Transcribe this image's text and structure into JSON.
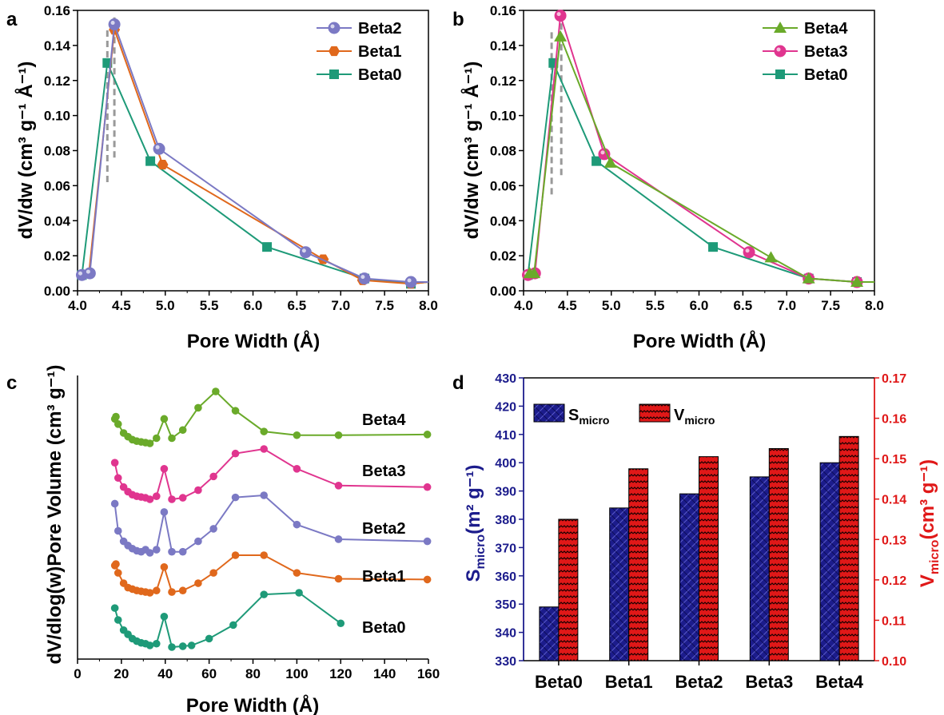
{
  "colors": {
    "beta0": "#1e9a78",
    "beta1": "#e0681c",
    "beta2": "#7b79c4",
    "beta3": "#e0358f",
    "beta4": "#6aaa2a",
    "dashed": "#999999",
    "bar_s": "#1c1c8c",
    "bar_v": "#e01818",
    "axis_right": "#e01818",
    "axis_left_label": "#1c1c8c"
  },
  "panel_labels": {
    "a": "a",
    "b": "b",
    "c": "c",
    "d": "d"
  },
  "axis_labels": {
    "a_x": "Pore Width (Å)",
    "a_y": "dV/dw (cm³ g⁻¹ Å⁻¹)",
    "b_x": "Pore Width (Å)",
    "b_y": "dV/dw (cm³ g⁻¹ Å⁻¹)",
    "c_x": "Pore Width (Å)",
    "c_y": "dV/dlog(w)Pore Volume (cm³ g⁻¹)",
    "d_y_left": "S",
    "d_y_left_sub": "micro",
    "d_y_left_unit": "(m² g⁻¹)",
    "d_y_right": "V",
    "d_y_right_sub": "micro",
    "d_y_right_unit": "(cm³ g⁻¹)"
  },
  "legend_d": {
    "s_label": "S",
    "s_sub": "micro",
    "v_label": "V",
    "v_sub": "micro"
  },
  "chart_data": [
    {
      "panel": "a",
      "type": "line",
      "xlabel": "Pore Width (Å)",
      "ylabel": "dV/dw (cm3 g-1 Å-1)",
      "xlim": [
        4.0,
        8.0
      ],
      "ylim": [
        0.0,
        0.16
      ],
      "xticks": [
        "4.0",
        "4.5",
        "5.0",
        "5.5",
        "6.0",
        "6.5",
        "7.0",
        "7.5",
        "8.0"
      ],
      "yticks": [
        "0.00",
        "0.02",
        "0.04",
        "0.06",
        "0.08",
        "0.10",
        "0.12",
        "0.14",
        "0.16"
      ],
      "legend_position": "top-right",
      "series": [
        {
          "name": "Beta2",
          "color_key": "beta2",
          "marker": "circle",
          "x": [
            4.05,
            4.14,
            4.42,
            4.93,
            6.6,
            7.27,
            7.8,
            8.0
          ],
          "y": [
            0.009,
            0.01,
            0.152,
            0.081,
            0.022,
            0.007,
            0.005,
            0.005
          ]
        },
        {
          "name": "Beta1",
          "color_key": "beta1",
          "marker": "hexagon",
          "x": [
            4.05,
            4.13,
            4.42,
            4.97,
            6.8,
            7.25,
            7.8,
            8.0
          ],
          "y": [
            0.009,
            0.01,
            0.149,
            0.072,
            0.018,
            0.006,
            0.004,
            0.005
          ]
        },
        {
          "name": "Beta0",
          "color_key": "beta0",
          "marker": "square",
          "x": [
            4.05,
            4.34,
            4.83,
            6.16,
            7.27,
            7.8,
            8.0
          ],
          "y": [
            0.009,
            0.13,
            0.074,
            0.025,
            0.007,
            0.004,
            0.005
          ]
        }
      ],
      "dashed_lines": [
        {
          "x": 4.34,
          "y0": 0.062,
          "y1": 0.15
        },
        {
          "x": 4.42,
          "y0": 0.076,
          "y1": 0.156
        }
      ]
    },
    {
      "panel": "b",
      "type": "line",
      "xlabel": "Pore Width (Å)",
      "ylabel": "dV/dw (cm3 g-1 Å-1)",
      "xlim": [
        4.0,
        8.0
      ],
      "ylim": [
        0.0,
        0.16
      ],
      "xticks": [
        "4.0",
        "4.5",
        "5.0",
        "5.5",
        "6.0",
        "6.5",
        "7.0",
        "7.5",
        "8.0"
      ],
      "yticks": [
        "0.00",
        "0.02",
        "0.04",
        "0.06",
        "0.08",
        "0.10",
        "0.12",
        "0.14",
        "0.16"
      ],
      "legend_position": "top-right",
      "series": [
        {
          "name": "Beta4",
          "color_key": "beta4",
          "marker": "triangle",
          "x": [
            4.07,
            4.12,
            4.42,
            4.99,
            6.82,
            7.25,
            7.8,
            8.0
          ],
          "y": [
            0.01,
            0.01,
            0.145,
            0.073,
            0.019,
            0.007,
            0.005,
            0.005
          ]
        },
        {
          "name": "Beta3",
          "color_key": "beta3",
          "marker": "circle",
          "x": [
            4.05,
            4.13,
            4.42,
            4.92,
            6.57,
            7.25,
            7.8,
            8.0
          ],
          "y": [
            0.009,
            0.01,
            0.157,
            0.078,
            0.022,
            0.007,
            0.005,
            0.005
          ]
        },
        {
          "name": "Beta0",
          "color_key": "beta0",
          "marker": "square",
          "x": [
            4.05,
            4.34,
            4.83,
            6.16,
            7.25,
            7.8,
            8.0
          ],
          "y": [
            0.009,
            0.13,
            0.074,
            0.025,
            0.007,
            0.005,
            0.005
          ]
        }
      ],
      "dashed_lines": [
        {
          "x": 4.32,
          "y0": 0.055,
          "y1": 0.148
        },
        {
          "x": 4.43,
          "y0": 0.066,
          "y1": 0.156
        }
      ]
    },
    {
      "panel": "c",
      "type": "line",
      "xlabel": "Pore Width (Å)",
      "ylabel": "dV/dlog(w)Pore Volume (cm3 g-1)",
      "xlim": [
        0,
        160
      ],
      "xticks": [
        "0",
        "20",
        "40",
        "60",
        "80",
        "100",
        "120",
        "140",
        "160"
      ],
      "y_offset_stacked": true,
      "series": [
        {
          "name": "Beta4",
          "color_key": "beta4",
          "x": [
            17,
            17.5,
            18.5,
            21,
            23,
            25,
            27,
            29,
            31,
            33,
            36,
            39.5,
            43,
            48,
            55,
            63,
            72,
            85,
            100,
            119,
            160
          ],
          "y": [
            0.655,
            0.67,
            0.62,
            0.56,
            0.535,
            0.515,
            0.505,
            0.5,
            0.495,
            0.49,
            0.525,
            0.655,
            0.525,
            0.58,
            0.73,
            0.84,
            0.71,
            0.57,
            0.545,
            0.545,
            0.55
          ]
        },
        {
          "name": "Beta3",
          "color_key": "beta3",
          "x": [
            17,
            18.5,
            21,
            23,
            25,
            27,
            29,
            31,
            33,
            36,
            39.5,
            43,
            48,
            55,
            62,
            72,
            85,
            100,
            119,
            160
          ],
          "y": [
            0.8,
            0.7,
            0.64,
            0.61,
            0.59,
            0.58,
            0.575,
            0.57,
            0.56,
            0.58,
            0.76,
            0.56,
            0.57,
            0.62,
            0.71,
            0.86,
            0.89,
            0.76,
            0.65,
            0.64
          ]
        },
        {
          "name": "Beta2",
          "color_key": "beta2",
          "x": [
            17,
            18.5,
            21,
            23,
            25,
            27,
            29,
            31,
            33,
            36,
            39.5,
            43,
            48,
            55,
            62,
            72,
            85,
            100,
            119,
            160
          ],
          "y": [
            0.86,
            0.73,
            0.68,
            0.66,
            0.645,
            0.635,
            0.63,
            0.64,
            0.625,
            0.64,
            0.82,
            0.63,
            0.63,
            0.68,
            0.74,
            0.89,
            0.9,
            0.76,
            0.69,
            0.68
          ]
        },
        {
          "name": "Beta1",
          "color_key": "beta1",
          "x": [
            17,
            17.5,
            18.5,
            21,
            23,
            25,
            27,
            29,
            31,
            33,
            36,
            39.5,
            43,
            48,
            55,
            62,
            72,
            85,
            100,
            119,
            160
          ],
          "y": [
            0.77,
            0.78,
            0.72,
            0.65,
            0.62,
            0.61,
            0.6,
            0.595,
            0.59,
            0.585,
            0.6,
            0.76,
            0.59,
            0.6,
            0.65,
            0.72,
            0.84,
            0.84,
            0.72,
            0.68,
            0.675
          ]
        },
        {
          "name": "Beta0",
          "color_key": "beta0",
          "x": [
            17,
            18.5,
            21,
            23,
            25,
            27,
            29,
            31,
            33,
            36,
            39.5,
            43,
            48,
            52,
            60,
            71,
            85,
            101,
            120
          ],
          "y": [
            0.79,
            0.72,
            0.66,
            0.635,
            0.61,
            0.595,
            0.585,
            0.58,
            0.57,
            0.58,
            0.74,
            0.56,
            0.565,
            0.57,
            0.61,
            0.69,
            0.87,
            0.88,
            0.7
          ]
        }
      ]
    },
    {
      "panel": "d",
      "type": "bar",
      "categories": [
        "Beta0",
        "Beta1",
        "Beta2",
        "Beta3",
        "Beta4"
      ],
      "ylim_left": [
        330,
        430
      ],
      "ylim_right": [
        0.1,
        0.17
      ],
      "yticks_left": [
        "330",
        "340",
        "350",
        "360",
        "370",
        "380",
        "390",
        "400",
        "410",
        "420",
        "430"
      ],
      "yticks_right": [
        "0.10",
        "0.11",
        "0.12",
        "0.13",
        "0.14",
        "0.15",
        "0.16",
        "0.17"
      ],
      "legend_position": "top-left",
      "series": [
        {
          "name": "S_micro",
          "axis": "left",
          "values": [
            349,
            384,
            389,
            395,
            400
          ]
        },
        {
          "name": "V_micro",
          "axis": "right",
          "values": [
            0.135,
            0.1475,
            0.1505,
            0.1525,
            0.1555
          ]
        }
      ]
    }
  ]
}
